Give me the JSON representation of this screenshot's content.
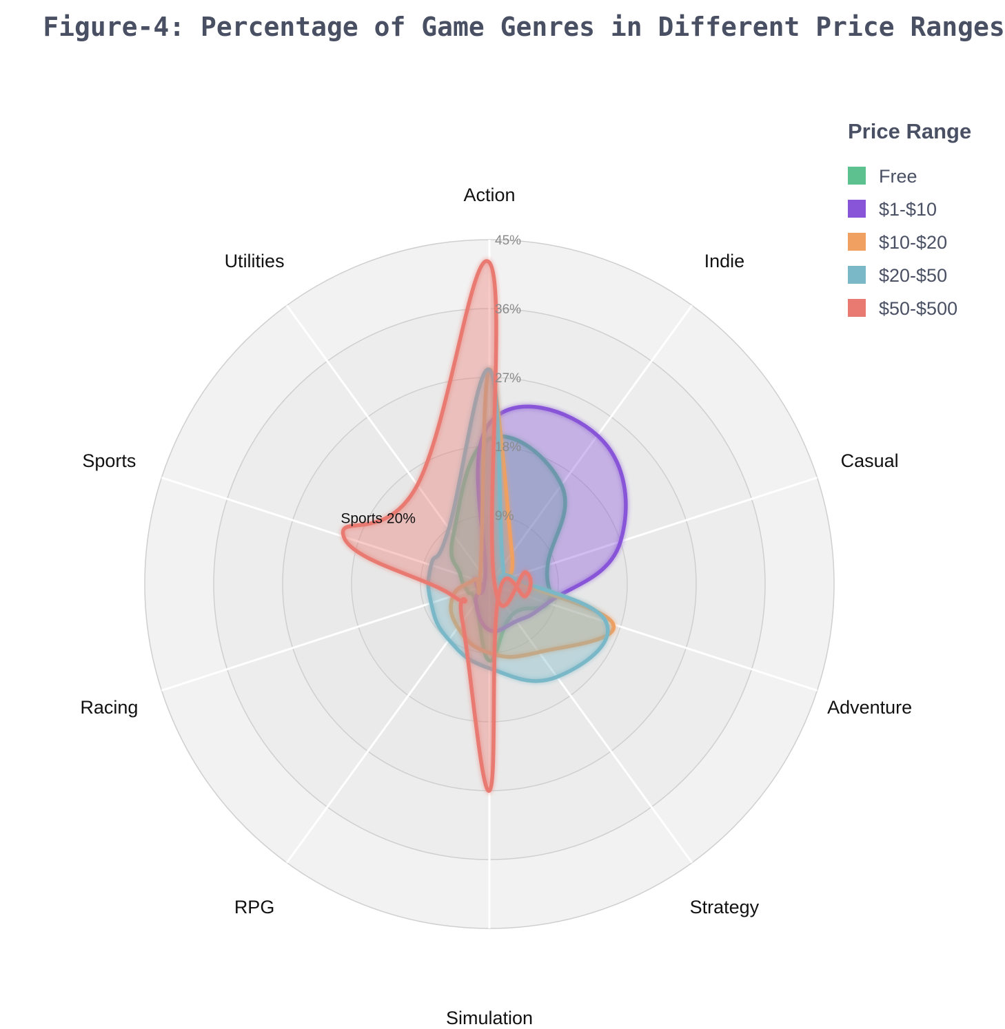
{
  "chart_data": {
    "type": "radar",
    "title": "Figure-4: Percentage of Game Genres in Different Price Ranges",
    "categories": [
      "Action",
      "Indie",
      "Casual",
      "Adventure",
      "Strategy",
      "Simulation",
      "RPG",
      "Racing",
      "Sports",
      "Utilities"
    ],
    "radial_ticks": [
      "9%",
      "18%",
      "27%",
      "36%",
      "45%"
    ],
    "radial_range": [
      0,
      45
    ],
    "legend_title": "Price Range",
    "legend_position": "top-right",
    "series": [
      {
        "name": "Free",
        "color": "#5cc08f",
        "values": [
          19,
          16,
          8,
          8,
          5,
          10,
          3,
          3,
          4,
          8
        ]
      },
      {
        "name": "$1-$10",
        "color": "#8855d8",
        "values": [
          21,
          24,
          18,
          8,
          6,
          6,
          3,
          1,
          2,
          1
        ]
      },
      {
        "name": "$10-$20",
        "color": "#f0a060",
        "values": [
          28,
          5,
          3,
          17,
          11,
          9,
          7,
          5,
          2,
          2
        ]
      },
      {
        "name": "$20-$50",
        "color": "#7ab8c8",
        "values": [
          28,
          3,
          3,
          16,
          15,
          11,
          9,
          8,
          8,
          9
        ]
      },
      {
        "name": "$50-$500",
        "color": "#e97a72",
        "values": [
          42,
          1,
          5,
          5,
          2,
          27,
          6,
          5,
          20,
          16
        ]
      }
    ],
    "annotations": [
      {
        "text": "Sports 20%",
        "category": "Sports",
        "value": 20
      }
    ]
  }
}
